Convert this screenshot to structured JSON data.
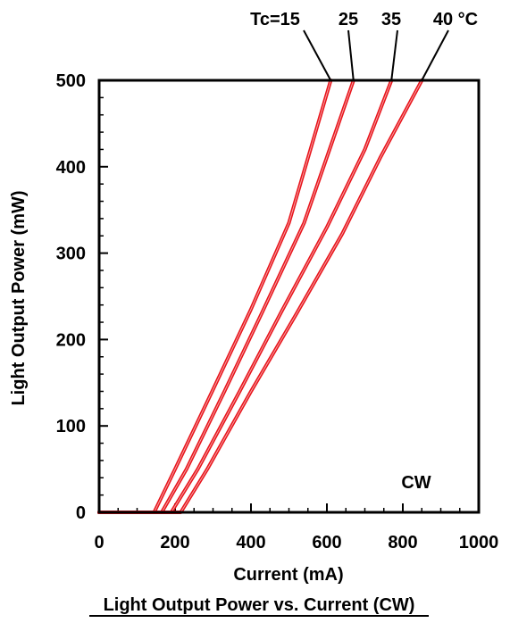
{
  "chart_data": {
    "type": "line",
    "title": "Light Output Power vs. Current (CW)",
    "xlabel": "Current (mA)",
    "ylabel": "Light Output Power (mW)",
    "xlim": [
      0,
      1000
    ],
    "ylim": [
      0,
      500
    ],
    "xticks": [
      "0",
      "200",
      "400",
      "600",
      "800",
      "1000"
    ],
    "yticks": [
      "0",
      "100",
      "200",
      "300",
      "400",
      "500"
    ],
    "grid": false,
    "line_color": "#e8141b",
    "annotation": "CW",
    "series_labels": [
      "Tc=15",
      "25",
      "35",
      "40 °C"
    ],
    "series": [
      {
        "label": "Tc=15",
        "x": [
          0,
          145,
          200,
          300,
          400,
          500,
          610
        ],
        "y": [
          0,
          0,
          50,
          142,
          235,
          335,
          500
        ]
      },
      {
        "label": "25",
        "x": [
          0,
          165,
          230,
          330,
          430,
          540,
          670
        ],
        "y": [
          0,
          0,
          50,
          140,
          232,
          335,
          500
        ]
      },
      {
        "label": "35",
        "x": [
          0,
          190,
          260,
          370,
          480,
          600,
          700,
          770
        ],
        "y": [
          0,
          0,
          50,
          140,
          232,
          330,
          420,
          500
        ]
      },
      {
        "label": "40 °C",
        "x": [
          0,
          215,
          285,
          400,
          520,
          640,
          740,
          850
        ],
        "y": [
          0,
          0,
          50,
          140,
          230,
          322,
          410,
          500
        ]
      }
    ]
  }
}
